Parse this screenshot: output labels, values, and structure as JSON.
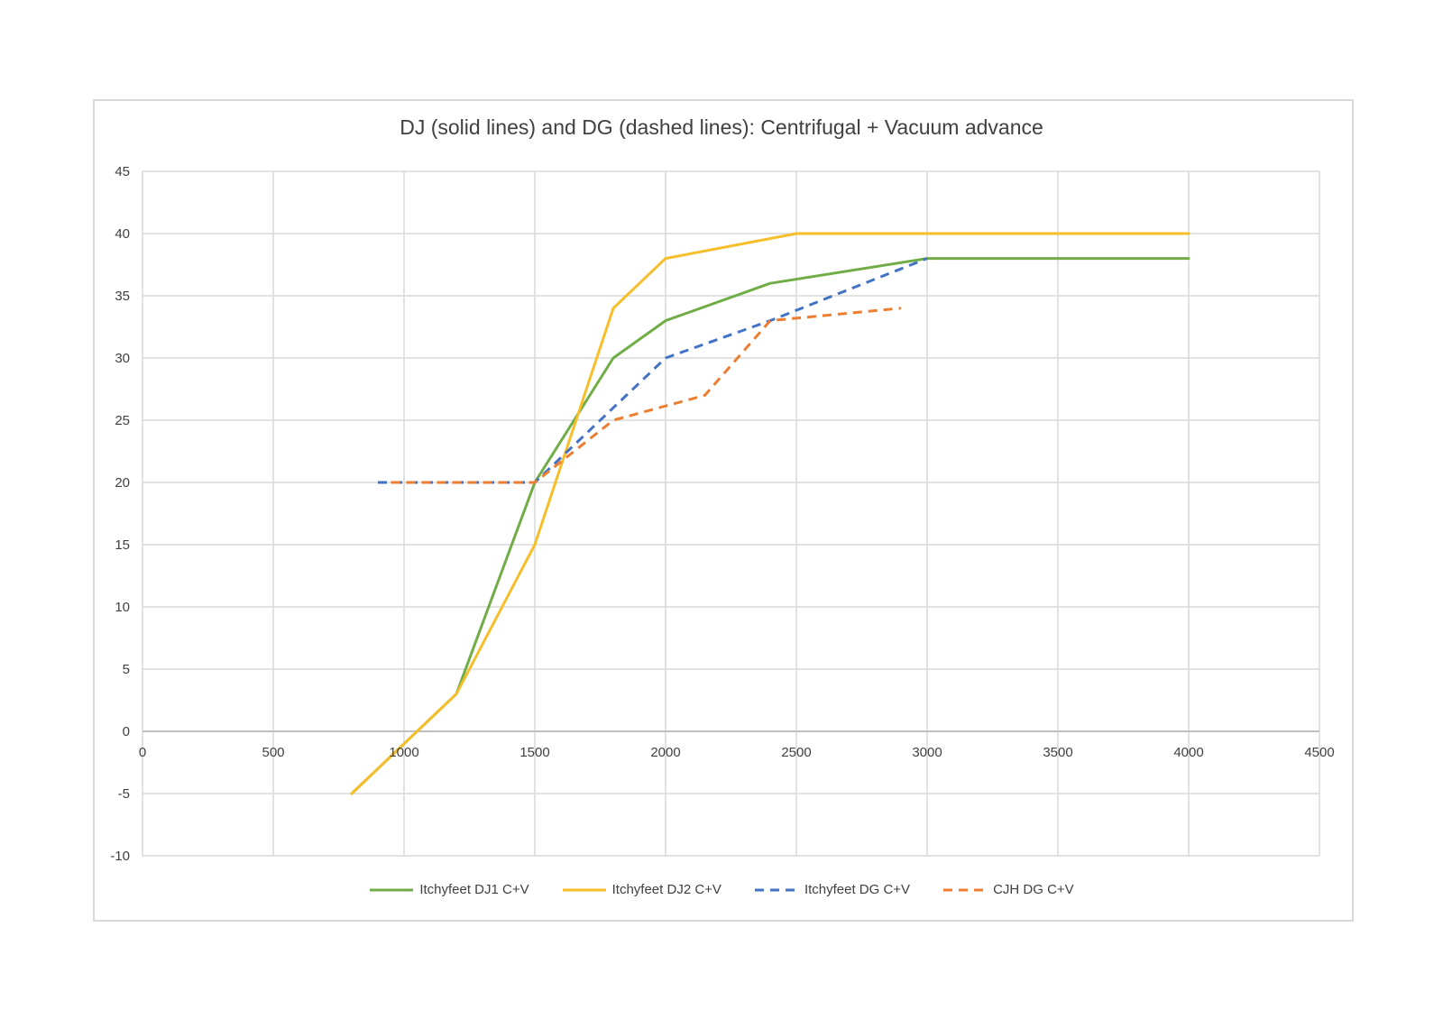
{
  "chart_data": {
    "type": "line",
    "title": "DJ (solid lines) and DG (dashed lines): Centrifugal + Vacuum advance",
    "xlabel": "",
    "ylabel": "",
    "xlim": [
      0,
      4500
    ],
    "ylim": [
      -10,
      45
    ],
    "x_ticks": [
      0,
      500,
      1000,
      1500,
      2000,
      2500,
      3000,
      3500,
      4000,
      4500
    ],
    "y_ticks": [
      -10,
      -5,
      0,
      5,
      10,
      15,
      20,
      25,
      30,
      35,
      40,
      45
    ],
    "grid": true,
    "legend_position": "bottom",
    "series": [
      {
        "name": "Itchyfeet DJ1 C+V",
        "color": "#70ad47",
        "dashed": false,
        "points": [
          [
            800,
            -5
          ],
          [
            1200,
            3
          ],
          [
            1500,
            20
          ],
          [
            1800,
            30
          ],
          [
            2000,
            33
          ],
          [
            2400,
            36
          ],
          [
            3000,
            38
          ],
          [
            4000,
            38
          ]
        ]
      },
      {
        "name": "Itchyfeet DJ2 C+V",
        "color": "#f5be2a",
        "dashed": false,
        "points": [
          [
            800,
            -5
          ],
          [
            1200,
            3
          ],
          [
            1500,
            15
          ],
          [
            1800,
            34
          ],
          [
            2000,
            38
          ],
          [
            2500,
            40
          ],
          [
            3000,
            40
          ],
          [
            4000,
            40
          ]
        ]
      },
      {
        "name": "Itchyfeet DG C+V",
        "color": "#4472c4",
        "dashed": true,
        "points": [
          [
            900,
            20
          ],
          [
            1500,
            20
          ],
          [
            1800,
            26
          ],
          [
            2000,
            30
          ],
          [
            2400,
            33
          ],
          [
            3000,
            38
          ]
        ]
      },
      {
        "name": "CJH DG C+V",
        "color": "#ed7d31",
        "dashed": true,
        "points": [
          [
            950,
            20
          ],
          [
            1500,
            20
          ],
          [
            1800,
            25
          ],
          [
            2150,
            27
          ],
          [
            2400,
            33
          ],
          [
            2900,
            34
          ]
        ]
      }
    ]
  }
}
